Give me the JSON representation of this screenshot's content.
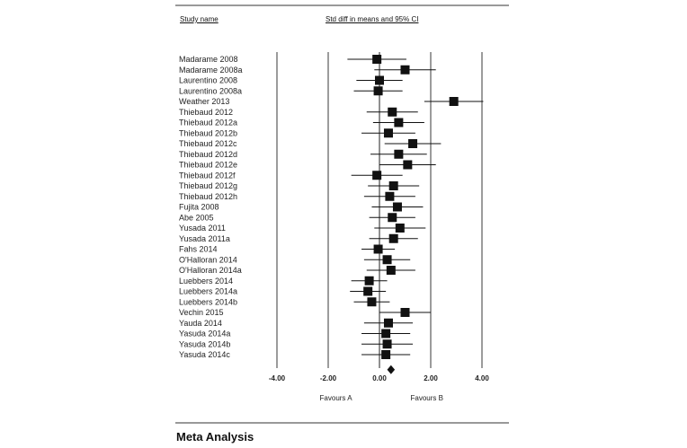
{
  "header": {
    "study_col": "Study name",
    "effect_col": "Std diff in means and 95% CI"
  },
  "footer": {
    "title": "Meta Analysis"
  },
  "chart_data": {
    "type": "forest",
    "title": "",
    "xlabel": "",
    "xlim": [
      -4,
      4
    ],
    "ticks": [
      -4,
      -2,
      0,
      2,
      4
    ],
    "tick_labels": [
      "-4.00",
      "-2.00",
      "0.00",
      "2.00",
      "4.00"
    ],
    "favours_left": "Favours A",
    "favours_right": "Favours B",
    "studies": [
      {
        "name": "Madarame 2008",
        "smd": -0.1,
        "lower": -1.25,
        "upper": 1.05
      },
      {
        "name": "Madarame 2008a",
        "smd": 1.0,
        "lower": -0.2,
        "upper": 2.2
      },
      {
        "name": "Laurentino 2008",
        "smd": 0.0,
        "lower": -0.9,
        "upper": 0.9
      },
      {
        "name": "Laurentino 2008a",
        "smd": -0.05,
        "lower": -1.0,
        "upper": 0.9
      },
      {
        "name": "Weather 2013",
        "smd": 2.9,
        "lower": 1.75,
        "upper": 4.05
      },
      {
        "name": "Thiebaud 2012",
        "smd": 0.5,
        "lower": -0.5,
        "upper": 1.5
      },
      {
        "name": "Thiebaud 2012a",
        "smd": 0.75,
        "lower": -0.25,
        "upper": 1.75
      },
      {
        "name": "Thiebaud 2012b",
        "smd": 0.35,
        "lower": -0.7,
        "upper": 1.4
      },
      {
        "name": "Thiebaud 2012c",
        "smd": 1.3,
        "lower": 0.2,
        "upper": 2.4
      },
      {
        "name": "Thiebaud 2012d",
        "smd": 0.75,
        "lower": -0.35,
        "upper": 1.85
      },
      {
        "name": "Thiebaud 2012e",
        "smd": 1.1,
        "lower": 0.0,
        "upper": 2.2
      },
      {
        "name": "Thiebaud 2012f",
        "smd": -0.1,
        "lower": -1.1,
        "upper": 0.9
      },
      {
        "name": "Thiebaud 2012g",
        "smd": 0.55,
        "lower": -0.45,
        "upper": 1.55
      },
      {
        "name": "Thiebaud 2012h",
        "smd": 0.4,
        "lower": -0.6,
        "upper": 1.4
      },
      {
        "name": "Fujita 2008",
        "smd": 0.7,
        "lower": -0.3,
        "upper": 1.7
      },
      {
        "name": "Abe 2005",
        "smd": 0.5,
        "lower": -0.4,
        "upper": 1.4
      },
      {
        "name": "Yusada 2011",
        "smd": 0.8,
        "lower": -0.2,
        "upper": 1.8
      },
      {
        "name": "Yusada 2011a",
        "smd": 0.55,
        "lower": -0.4,
        "upper": 1.5
      },
      {
        "name": "Fahs 2014",
        "smd": -0.05,
        "lower": -0.7,
        "upper": 0.6
      },
      {
        "name": "O'Halloran 2014",
        "smd": 0.3,
        "lower": -0.6,
        "upper": 1.2
      },
      {
        "name": "O'Halloran 2014a",
        "smd": 0.45,
        "lower": -0.5,
        "upper": 1.4
      },
      {
        "name": "Luebbers 2014",
        "smd": -0.4,
        "lower": -1.1,
        "upper": 0.3
      },
      {
        "name": "Luebbers 2014a",
        "smd": -0.45,
        "lower": -1.15,
        "upper": 0.25
      },
      {
        "name": "Luebbers 2014b",
        "smd": -0.3,
        "lower": -1.0,
        "upper": 0.4
      },
      {
        "name": "Vechin 2015",
        "smd": 1.0,
        "lower": 0.0,
        "upper": 2.0
      },
      {
        "name": "Yauda 2014",
        "smd": 0.35,
        "lower": -0.6,
        "upper": 1.3
      },
      {
        "name": "Yasuda 2014a",
        "smd": 0.25,
        "lower": -0.7,
        "upper": 1.2
      },
      {
        "name": "Yasuda 2014b",
        "smd": 0.3,
        "lower": -0.7,
        "upper": 1.3
      },
      {
        "name": "Yasuda 2014c",
        "smd": 0.25,
        "lower": -0.7,
        "upper": 1.2
      }
    ],
    "summary": {
      "smd": 0.45,
      "lower": 0.3,
      "upper": 0.6
    }
  }
}
